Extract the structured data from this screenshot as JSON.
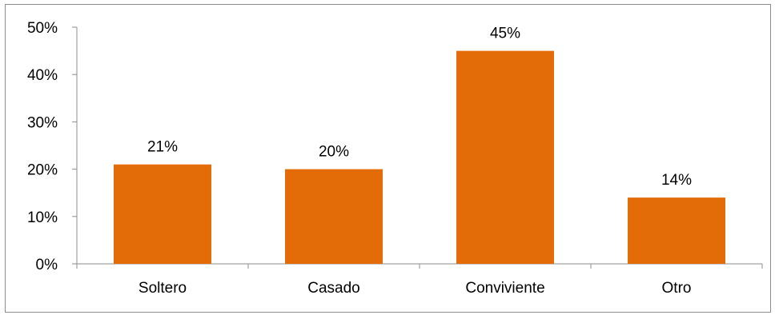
{
  "chart_data": {
    "type": "bar",
    "title": "",
    "xlabel": "",
    "ylabel": "",
    "categories": [
      "Soltero",
      "Casado",
      "Conviviente",
      "Otro"
    ],
    "values": [
      21,
      20,
      45,
      14
    ],
    "data_labels": [
      "21%",
      "20%",
      "45%",
      "14%"
    ],
    "ylim": [
      0,
      50
    ],
    "yticks": [
      0,
      10,
      20,
      30,
      40,
      50
    ],
    "ytick_labels": [
      "0%",
      "10%",
      "20%",
      "30%",
      "40%",
      "50%"
    ],
    "grid": false,
    "legend": "none",
    "bar_color": "#e36c09",
    "axis_color": "#8c8c8c"
  }
}
